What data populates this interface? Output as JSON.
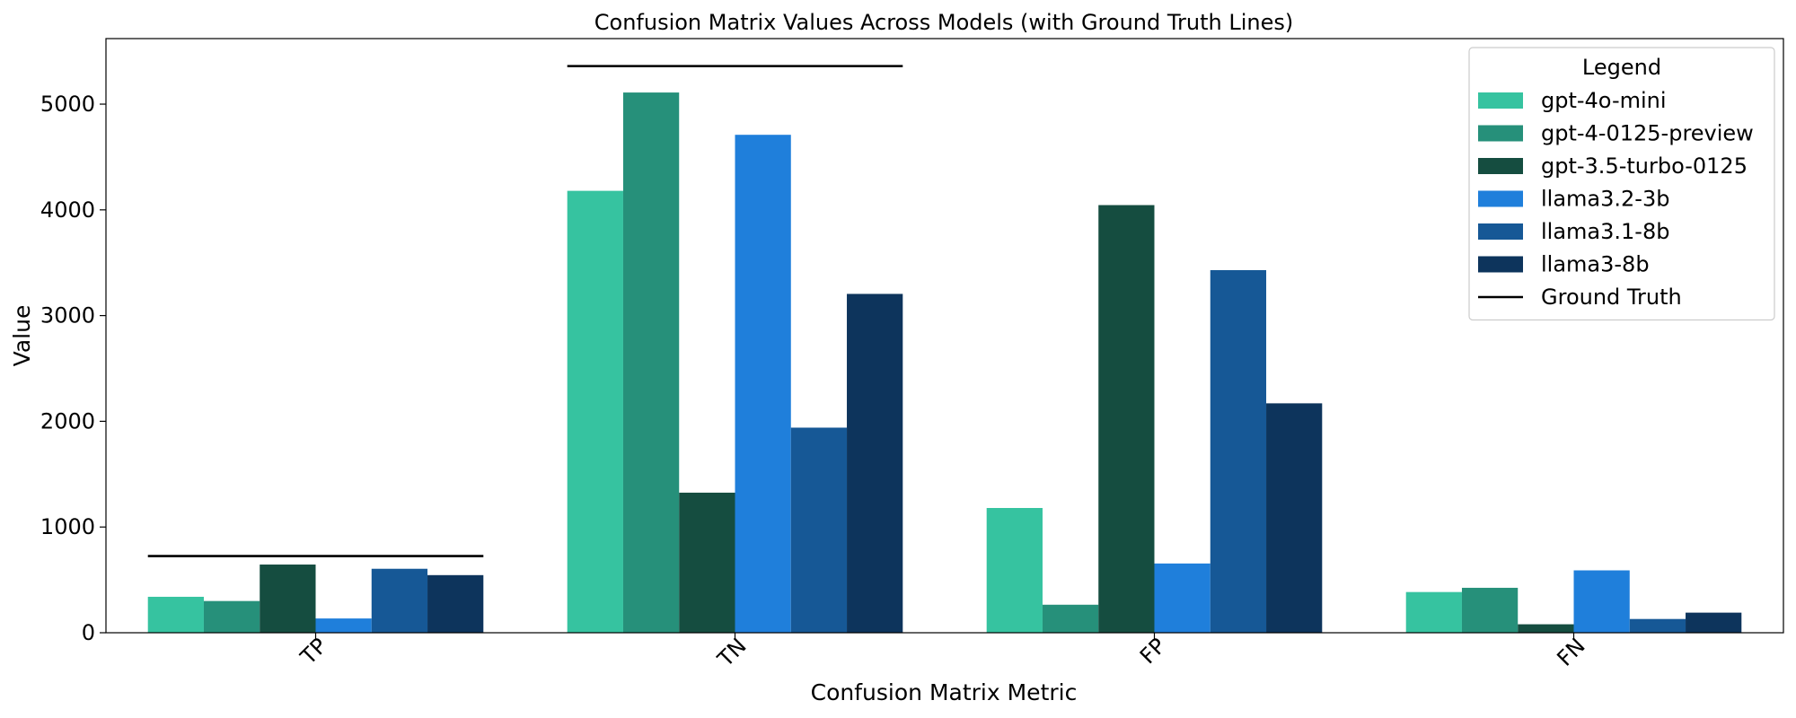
{
  "chart_data": {
    "type": "bar",
    "title": "Confusion Matrix Values Across Models (with Ground Truth Lines)",
    "xlabel": "Confusion Matrix Metric",
    "ylabel": "Value",
    "categories": [
      "TP",
      "TN",
      "FP",
      "FN"
    ],
    "ylim": [
      0,
      5620
    ],
    "yticks": [
      0,
      1000,
      2000,
      3000,
      4000,
      5000
    ],
    "grid": false,
    "legend_title": "Legend",
    "legend_position": "top-right",
    "series": [
      {
        "name": "gpt-4o-mini",
        "color": "#36c3a0",
        "values": [
          340,
          4180,
          1180,
          385
        ]
      },
      {
        "name": "gpt-4-0125-preview",
        "color": "#26907a",
        "values": [
          300,
          5110,
          265,
          425
        ]
      },
      {
        "name": "gpt-3.5-turbo-0125",
        "color": "#154d40",
        "values": [
          645,
          1325,
          4045,
          80
        ]
      },
      {
        "name": "llama3.2-3b",
        "color": "#1f7fdb",
        "values": [
          135,
          4710,
          655,
          590
        ]
      },
      {
        "name": "llama3.1-8b",
        "color": "#165896",
        "values": [
          605,
          1940,
          3430,
          130
        ]
      },
      {
        "name": "llama3-8b",
        "color": "#0d345c",
        "values": [
          545,
          3205,
          2170,
          190
        ]
      }
    ],
    "ground_truth": {
      "name": "Ground Truth",
      "color": "#000000",
      "values": [
        725,
        5360,
        null,
        null
      ]
    }
  }
}
